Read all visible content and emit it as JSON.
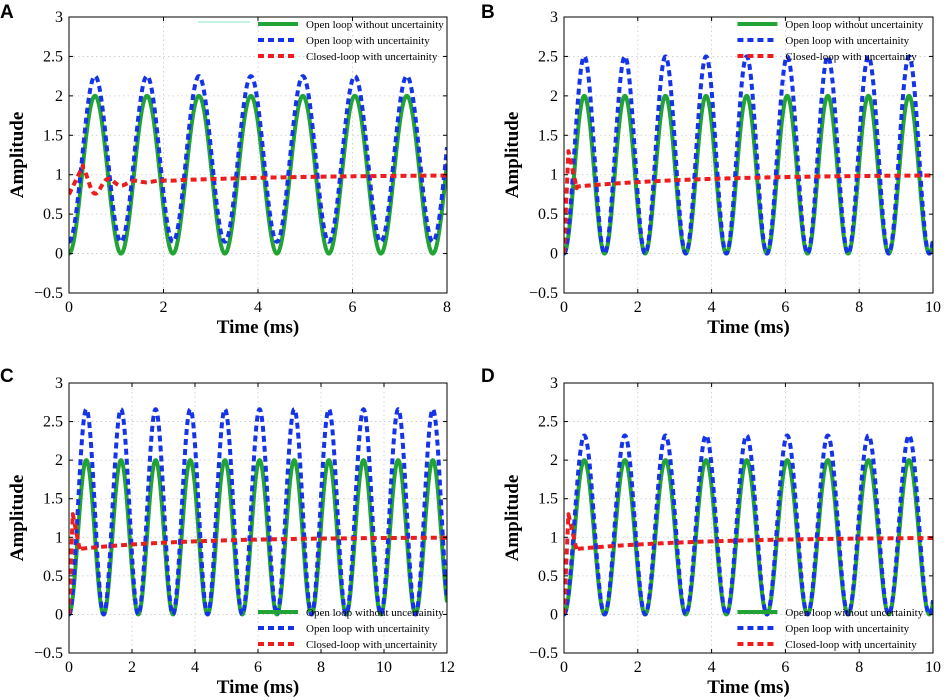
{
  "chart_data": [
    {
      "type": "line",
      "panel_label": "A",
      "xlabel": "Time (ms)",
      "ylabel": "Amplitude",
      "xlim": [
        0,
        8
      ],
      "ylim": [
        -0.5,
        3
      ],
      "xticks": [
        0,
        2,
        4,
        6,
        8
      ],
      "xtick_labels": [
        "0",
        "2",
        "4",
        "6",
        "8"
      ],
      "yticks": [
        -0.5,
        0,
        0.5,
        1,
        1.5,
        2,
        2.5,
        3
      ],
      "ytick_labels": [
        "−0.5",
        "0",
        "0.5",
        "1",
        "1.5",
        "2",
        "2.5",
        "3"
      ],
      "grid": true,
      "legend_position": "top-right",
      "period_ms": 1.1,
      "series": [
        {
          "name": "Open loop without uncertainity",
          "color": "#21a336",
          "style": "solid",
          "mean": 1.0,
          "amplitude": 1.0
        },
        {
          "name": "Open loop with uncertainity",
          "color": "#1533e8",
          "style": "dashed",
          "mean": 1.2,
          "amplitude": 1.05
        },
        {
          "name": "Closed-loop with uncertainity",
          "color": "#ee1c1c",
          "style": "dashed",
          "start": 0.75,
          "peak": 1.12,
          "peak_time": 0.3,
          "final": 1.0,
          "oscillation": 0.35
        }
      ]
    },
    {
      "type": "line",
      "panel_label": "B",
      "xlabel": "Time (ms)",
      "ylabel": "Amplitude",
      "xlim": [
        0,
        10
      ],
      "ylim": [
        -0.5,
        3
      ],
      "xticks": [
        0,
        2,
        4,
        6,
        8,
        10
      ],
      "xtick_labels": [
        "0",
        "2",
        "4",
        "6",
        "8",
        "10"
      ],
      "yticks": [
        -0.5,
        0,
        0.5,
        1,
        1.5,
        2,
        2.5,
        3
      ],
      "ytick_labels": [
        "−0.5",
        "0",
        "0.5",
        "1",
        "1.5",
        "2",
        "2.5",
        "3"
      ],
      "grid": true,
      "legend_position": "top-right",
      "period_ms": 1.1,
      "series": [
        {
          "name": "Open loop without uncertainity",
          "color": "#21a336",
          "style": "solid",
          "mean": 1.0,
          "amplitude": 1.0
        },
        {
          "name": "Open loop with uncertainity",
          "color": "#1533e8",
          "style": "dashed",
          "mean": 1.25,
          "amplitude": 1.25
        },
        {
          "name": "Closed-loop with uncertainity",
          "color": "#ee1c1c",
          "style": "dashed",
          "start": 0.0,
          "peak": 1.3,
          "peak_time": 0.12,
          "final": 1.0,
          "oscillation": 0.0
        }
      ]
    },
    {
      "type": "line",
      "panel_label": "C",
      "xlabel": "Time (ms)",
      "ylabel": "Amplitude",
      "xlim": [
        0,
        12
      ],
      "ylim": [
        -0.5,
        3
      ],
      "xticks": [
        0,
        2,
        4,
        6,
        8,
        10,
        12
      ],
      "xtick_labels": [
        "0",
        "2",
        "4",
        "6",
        "8",
        "10",
        "12"
      ],
      "yticks": [
        -0.5,
        0,
        0.5,
        1,
        1.5,
        2,
        2.5,
        3
      ],
      "ytick_labels": [
        "−0.5",
        "0",
        "0.5",
        "1",
        "1.5",
        "2",
        "2.5",
        "3"
      ],
      "grid": true,
      "legend_position": "bottom-right",
      "period_ms": 1.1,
      "series": [
        {
          "name": "Open loop without uncertainity",
          "color": "#21a336",
          "style": "solid",
          "mean": 1.0,
          "amplitude": 1.0
        },
        {
          "name": "Open loop with uncertainity",
          "color": "#1533e8",
          "style": "dashed",
          "mean": 1.33,
          "amplitude": 1.33
        },
        {
          "name": "Closed-loop with uncertainity",
          "color": "#ee1c1c",
          "style": "dashed",
          "start": 0.0,
          "peak": 1.3,
          "peak_time": 0.12,
          "final": 1.0,
          "oscillation": 0.0
        }
      ]
    },
    {
      "type": "line",
      "panel_label": "D",
      "xlabel": "Time (ms)",
      "ylabel": "Amplitude",
      "xlim": [
        0,
        10
      ],
      "ylim": [
        -0.5,
        3
      ],
      "xticks": [
        0,
        2,
        4,
        6,
        8,
        10
      ],
      "xtick_labels": [
        "0",
        "2",
        "4",
        "6",
        "8",
        "10"
      ],
      "yticks": [
        -0.5,
        0,
        0.5,
        1,
        1.5,
        2,
        2.5,
        3
      ],
      "ytick_labels": [
        "−0.5",
        "0",
        "0.5",
        "1",
        "1.5",
        "2",
        "2.5",
        "3"
      ],
      "grid": true,
      "legend_position": "bottom-right",
      "period_ms": 1.1,
      "series": [
        {
          "name": "Open loop without uncertainity",
          "color": "#21a336",
          "style": "solid",
          "mean": 1.0,
          "amplitude": 1.0
        },
        {
          "name": "Open loop with uncertainity",
          "color": "#1533e8",
          "style": "dashed",
          "mean": 1.16,
          "amplitude": 1.16
        },
        {
          "name": "Closed-loop with uncertainity",
          "color": "#ee1c1c",
          "style": "dashed",
          "start": 0.0,
          "peak": 1.3,
          "peak_time": 0.12,
          "final": 1.0,
          "oscillation": 0.0
        }
      ]
    }
  ]
}
